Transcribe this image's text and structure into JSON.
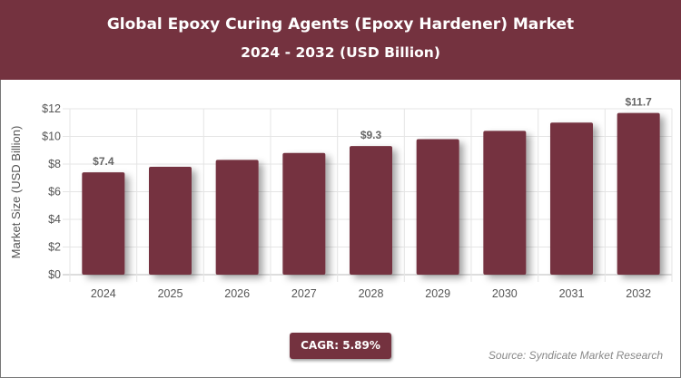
{
  "header": {
    "title": "Global Epoxy Curing Agents (Epoxy Hardener) Market",
    "subtitle": "2024 - 2032 (USD Billion)"
  },
  "chart_data": {
    "type": "bar",
    "title": "Global Epoxy Curing Agents (Epoxy Hardener) Market",
    "subtitle": "2024 - 2032 (USD Billion)",
    "xlabel": "",
    "ylabel": "Market Size (USD Billion)",
    "categories": [
      "2024",
      "2025",
      "2026",
      "2027",
      "2028",
      "2029",
      "2030",
      "2031",
      "2032"
    ],
    "values": [
      7.4,
      7.8,
      8.3,
      8.8,
      9.3,
      9.8,
      10.4,
      11.0,
      11.7
    ],
    "data_labels": {
      "0": "$7.4",
      "4": "$9.3",
      "8": "$11.7"
    },
    "ylim": [
      0,
      12
    ],
    "yticks": [
      "$0",
      "$2",
      "$4",
      "$6",
      "$8",
      "$10",
      "$12"
    ],
    "grid": true,
    "bar_color": "#74323f"
  },
  "footer": {
    "cagr": "CAGR: 5.89%",
    "source": "Source: Syndicate Market Research"
  }
}
